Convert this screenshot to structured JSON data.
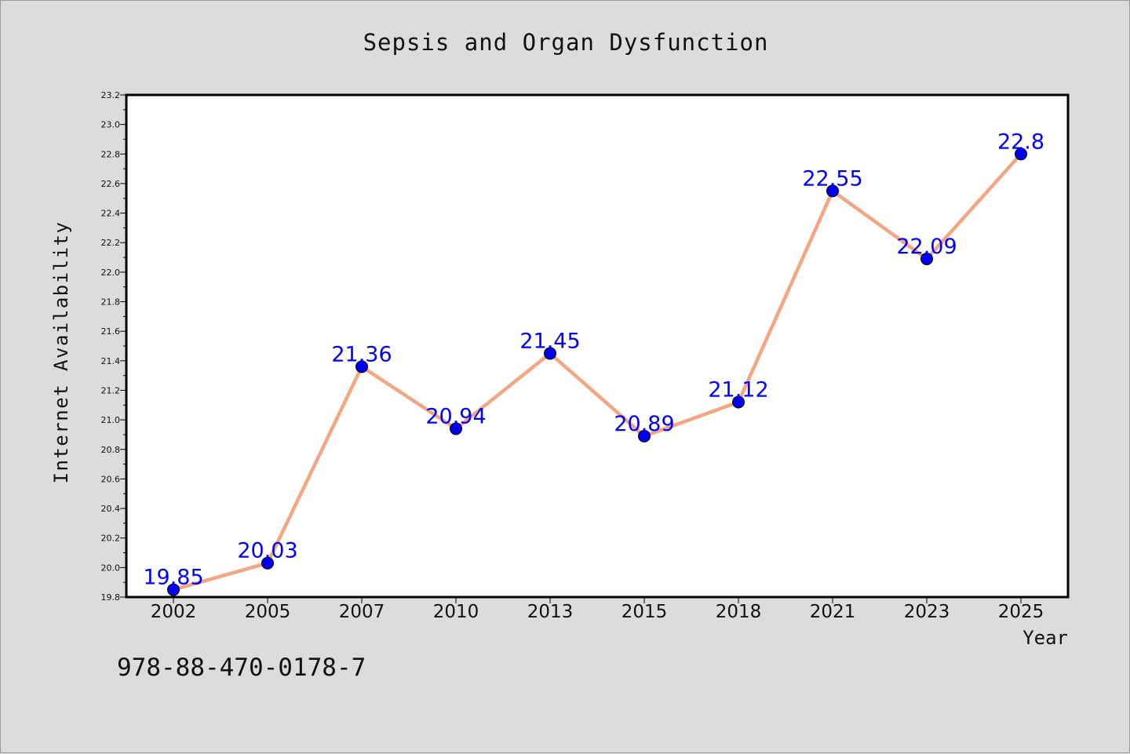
{
  "chart_data": {
    "type": "line",
    "title": "Sepsis and Organ Dysfunction",
    "xlabel": "Year",
    "ylabel": "Internet Availability",
    "categories": [
      "2002",
      "2005",
      "2007",
      "2010",
      "2013",
      "2015",
      "2018",
      "2021",
      "2023",
      "2025"
    ],
    "series": [
      {
        "values": [
          19.85,
          20.03,
          21.36,
          20.94,
          21.45,
          20.89,
          21.12,
          22.55,
          22.09,
          22.8
        ],
        "labels": [
          "19.85",
          "20.03",
          "21.36",
          "20.94",
          "21.45",
          "20.89",
          "21.12",
          "22.55",
          "22.09",
          "22.8"
        ],
        "line_color": "#f4a582",
        "marker_color": "#0000ee",
        "label_color": "#0000ff"
      }
    ],
    "ylim": [
      19.8,
      23.2
    ],
    "yticks": [
      "19.8",
      "20.0",
      "20.2",
      "20.4",
      "20.6",
      "20.8",
      "21.0",
      "21.2",
      "21.4",
      "21.6",
      "21.8",
      "22.0",
      "22.2",
      "22.4",
      "22.6",
      "22.8",
      "23.0",
      "23.2"
    ],
    "grid": false,
    "legend": "none"
  },
  "footer": {
    "isbn": "978-88-470-0178-7"
  }
}
